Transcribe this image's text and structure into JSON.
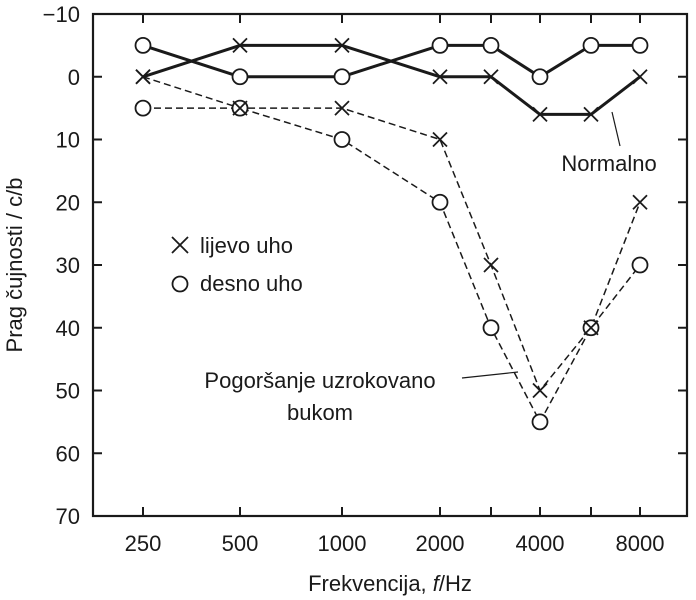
{
  "chart_data": {
    "type": "line",
    "xlabel_prefix": "Frekvencija, ",
    "xlabel_var": "f",
    "xlabel_suffix": "/Hz",
    "ylabel": "Prag čujnosti / c/b",
    "categories": [
      "250",
      "500",
      "1000",
      "2000",
      "",
      "4000",
      "",
      "8000"
    ],
    "y_ticks": [
      "−10",
      "0",
      "10",
      "20",
      "30",
      "40",
      "50",
      "60",
      "70"
    ],
    "ylim": [
      -10,
      70
    ],
    "y_inverted": true,
    "grid": false,
    "series": [
      {
        "group": "normal",
        "ear": "left",
        "values": [
          0,
          -5,
          -5,
          0,
          0,
          6,
          6,
          0
        ]
      },
      {
        "group": "normal",
        "ear": "right",
        "values": [
          -5,
          0,
          0,
          -5,
          -5,
          0,
          -5,
          -5
        ]
      },
      {
        "group": "noise",
        "ear": "left",
        "values": [
          0,
          5,
          5,
          10,
          30,
          50,
          40,
          20
        ]
      },
      {
        "group": "noise",
        "ear": "right",
        "values": [
          5,
          5,
          10,
          20,
          40,
          55,
          40,
          30
        ]
      }
    ],
    "legend": [
      {
        "marker": "cross",
        "label": "lijevo uho"
      },
      {
        "marker": "circle",
        "label": "desno uho"
      }
    ],
    "annotations": {
      "normal": "Normalno",
      "noise_line1": "Pogoršanje uzrokovano",
      "noise_line2": "bukom"
    }
  }
}
